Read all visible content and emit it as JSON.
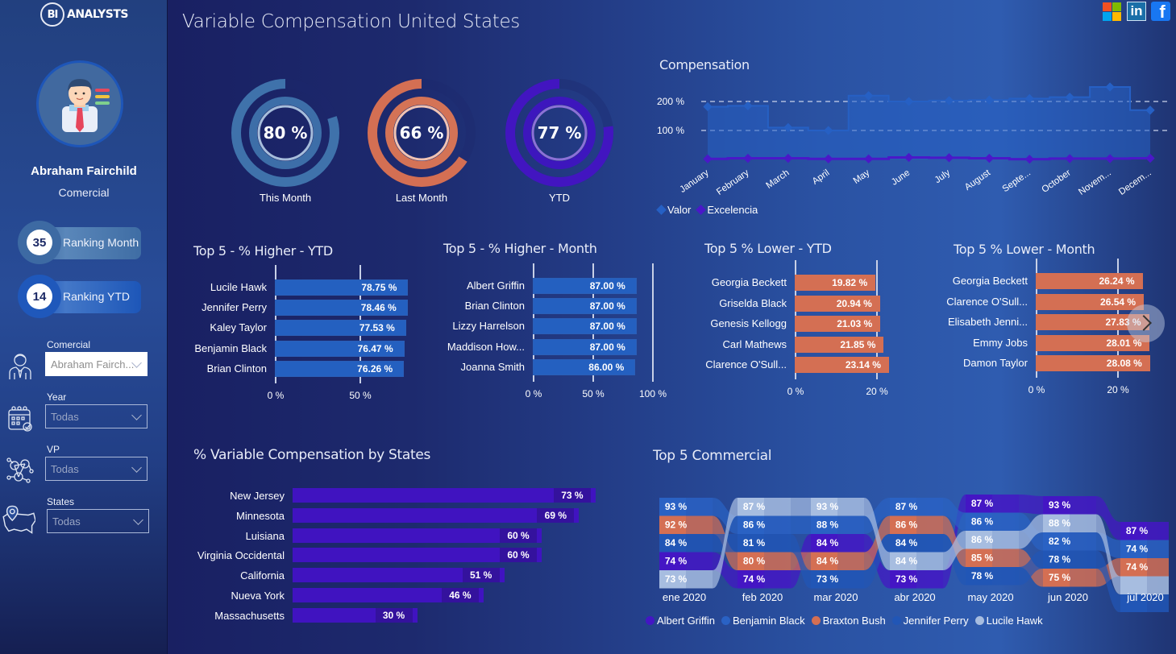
{
  "brand": {
    "logo_mark": "BI",
    "logo_text": "ANALYSTS"
  },
  "header": {
    "title": "Variable Compensation United States"
  },
  "social": [
    {
      "icon": "microsoft-icon"
    },
    {
      "icon": "linkedin-icon",
      "label": "in"
    },
    {
      "icon": "facebook-icon",
      "label": "f"
    }
  ],
  "profile": {
    "name": "Abraham Fairchild",
    "role": "Comercial"
  },
  "rankings": [
    {
      "value": "35",
      "label": "Ranking Month"
    },
    {
      "value": "14",
      "label": "Ranking YTD"
    }
  ],
  "filters": [
    {
      "label": "Comercial",
      "value": "Abraham Fairch...",
      "icon": "person-icon"
    },
    {
      "label": "Year",
      "value": "Todas",
      "icon": "calendar-icon"
    },
    {
      "label": "VP",
      "value": "Todas",
      "icon": "network-icon"
    },
    {
      "label": "States",
      "value": "Todas",
      "icon": "usa-map-icon"
    }
  ],
  "gauges": [
    {
      "label": "This Month",
      "value": 80,
      "display": "80 %",
      "color": "#3f72ab",
      "inner": "#3d6ea8",
      "ring": "#a6bddb"
    },
    {
      "label": "Last Month",
      "value": 66,
      "display": "66 %",
      "color": "#d46f53",
      "inner": "#d47356",
      "ring": "#f1c3b3"
    },
    {
      "label": "YTD",
      "value": 77,
      "display": "77 %",
      "color": "#4215c0",
      "inner": "#3d16bd",
      "ring": "#8c71d6"
    }
  ],
  "chart_data": [
    {
      "id": "compensation",
      "type": "area",
      "title": "Compensation",
      "categories": [
        "January",
        "February",
        "March",
        "April",
        "May",
        "June",
        "July",
        "August",
        "Septe...",
        "October",
        "Novem...",
        "Decem..."
      ],
      "series": [
        {
          "name": "Valor",
          "color": "#2660c4",
          "values": [
            182,
            185,
            110,
            100,
            220,
            200,
            203,
            205,
            210,
            215,
            250,
            170
          ]
        },
        {
          "name": "Excelencia",
          "color": "#4a18c8",
          "values": [
            2,
            4,
            4,
            2,
            2,
            7,
            6,
            4,
            1,
            3,
            3,
            4
          ]
        }
      ],
      "yticks": [
        "100 %",
        "200 %"
      ],
      "ytick_values": [
        100,
        200
      ],
      "ylim": [
        0,
        260
      ],
      "grid": true,
      "legend": "bottom-left"
    },
    {
      "id": "higher-ytd",
      "type": "bar",
      "title": "Top 5 - % Higher - YTD",
      "categories": [
        "Lucile Hawk",
        "Jennifer Perry",
        "Kaley Taylor",
        "Benjamin Black",
        "Brian Clinton"
      ],
      "values": [
        78.75,
        78.46,
        77.53,
        76.47,
        76.26
      ],
      "labels": [
        "78.75 %",
        "78.46 %",
        "77.53 %",
        "76.47 %",
        "76.26 %"
      ],
      "xticks": [
        "0 %",
        "50 %"
      ],
      "xtick_values": [
        0,
        50
      ],
      "xlim": [
        0,
        100
      ],
      "color": "#2460c0"
    },
    {
      "id": "higher-month",
      "type": "bar",
      "title": "Top 5 - % Higher - Month",
      "categories": [
        "Albert Griffin",
        "Brian Clinton",
        "Lizzy Harrelson",
        "Maddison How...",
        "Joanna Smith"
      ],
      "values": [
        87,
        87,
        87,
        87,
        86
      ],
      "labels": [
        "87.00 %",
        "87.00 %",
        "87.00 %",
        "87.00 %",
        "86.00 %"
      ],
      "xticks": [
        "0 %",
        "50 %",
        "100 %"
      ],
      "xtick_values": [
        0,
        50,
        100
      ],
      "xlim": [
        0,
        100
      ],
      "color": "#2460c0"
    },
    {
      "id": "lower-ytd",
      "type": "bar",
      "title": "Top 5 % Lower - YTD",
      "categories": [
        "Georgia Beckett",
        "Griselda Black",
        "Genesis Kellogg",
        "Carl Mathews",
        "Clarence O'Sull..."
      ],
      "values": [
        19.82,
        20.94,
        21.03,
        21.85,
        23.14
      ],
      "labels": [
        "19.82 %",
        "20.94 %",
        "21.03 %",
        "21.85 %",
        "23.14 %"
      ],
      "xticks": [
        "0 %",
        "20 %"
      ],
      "xtick_values": [
        0,
        20
      ],
      "xlim": [
        0,
        30
      ],
      "color": "#d46f53"
    },
    {
      "id": "lower-month",
      "type": "bar",
      "title": "Top 5 % Lower - Month",
      "categories": [
        "Georgia Beckett",
        "Clarence O'Sull...",
        "Elisabeth Jenni...",
        "Emmy Jobs",
        "Damon Taylor"
      ],
      "values": [
        26.24,
        26.54,
        27.83,
        28.01,
        28.08
      ],
      "labels": [
        "26.24 %",
        "26.54 %",
        "27.83 %",
        "28.01 %",
        "28.08 %"
      ],
      "xticks": [
        "0 %",
        "20 %"
      ],
      "xtick_values": [
        0,
        20
      ],
      "xlim": [
        0,
        30
      ],
      "color": "#d46f53"
    },
    {
      "id": "states",
      "type": "bar",
      "title": "% Variable Compensation by States",
      "categories": [
        "New Jersey",
        "Minnesota",
        "Luisiana",
        "Virginia Occidental",
        "California",
        "Nueva York",
        "Massachusetts"
      ],
      "values": [
        73,
        69,
        60,
        60,
        51,
        46,
        30
      ],
      "labels": [
        "73 %",
        "69 %",
        "60 %",
        "60 %",
        "51 %",
        "46 %",
        "30 %"
      ],
      "xlim": [
        0,
        75
      ],
      "color": "#4013c0"
    },
    {
      "id": "top5-commercial",
      "type": "ribbon",
      "title": "Top 5 Commercial",
      "categories": [
        "ene 2020",
        "feb 2020",
        "mar 2020",
        "abr 2020",
        "may 2020",
        "jun 2020",
        "jul 2020"
      ],
      "series": [
        {
          "name": "Albert Griffin",
          "color": "#4416c4",
          "values": [
            74,
            74,
            84,
            73,
            87,
            93,
            87
          ]
        },
        {
          "name": "Benjamin Black",
          "color": "#2a62c4",
          "values": [
            93,
            86,
            88,
            87,
            86,
            82,
            74
          ]
        },
        {
          "name": "Braxton Bush",
          "color": "#d46f53",
          "values": [
            92,
            80,
            84,
            86,
            85,
            75,
            74
          ]
        },
        {
          "name": "Jennifer Perry",
          "color": "#2156b6",
          "values": [
            84,
            81,
            73,
            84,
            78,
            78,
            null
          ]
        },
        {
          "name": "Lucile Hawk",
          "color": "#a7bde0",
          "values": [
            73,
            87,
            93,
            84,
            86,
            88,
            null
          ]
        }
      ],
      "legend": "bottom"
    }
  ]
}
